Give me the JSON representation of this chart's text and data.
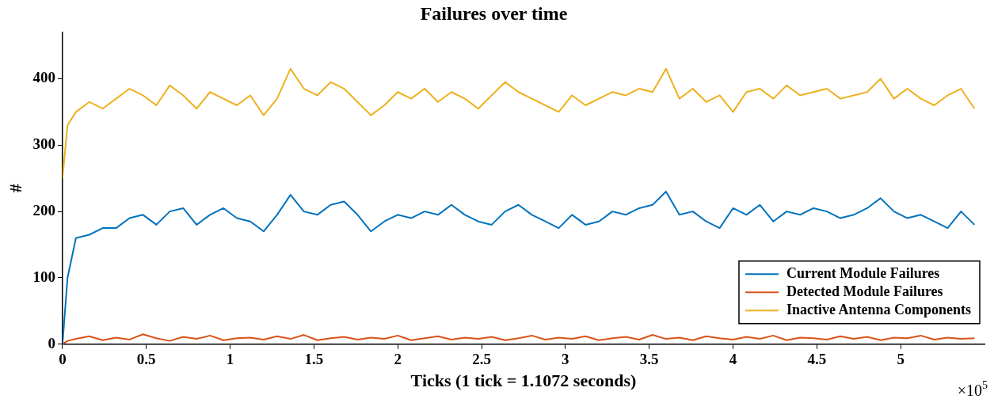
{
  "chart_data": {
    "type": "line",
    "title": "Failures over time",
    "xlabel": "Ticks (1 tick = 1.1072 seconds)",
    "ylabel": "#",
    "annotations": [
      "×10$^{5}$"
    ],
    "x": [
      0,
      0.03,
      0.08,
      0.16,
      0.24,
      0.32,
      0.4,
      0.48,
      0.56,
      0.64,
      0.72,
      0.8,
      0.88,
      0.96,
      1.04,
      1.12,
      1.2,
      1.28,
      1.36,
      1.44,
      1.52,
      1.6,
      1.68,
      1.76,
      1.84,
      1.92,
      2,
      2.08,
      2.16,
      2.24,
      2.32,
      2.4,
      2.48,
      2.56,
      2.64,
      2.72,
      2.8,
      2.88,
      2.96,
      3.04,
      3.12,
      3.2,
      3.28,
      3.36,
      3.44,
      3.52,
      3.6,
      3.68,
      3.76,
      3.84,
      3.92,
      4,
      4.08,
      4.16,
      4.24,
      4.32,
      4.4,
      4.48,
      4.56,
      4.64,
      4.72,
      4.8,
      4.88,
      4.96,
      5.04,
      5.12,
      5.2,
      5.28,
      5.36,
      5.44
    ],
    "series": [
      {
        "name": "Current Module Failures",
        "color": "#0072bd",
        "values": [
          0,
          100,
          160,
          165,
          175,
          175,
          190,
          195,
          180,
          200,
          205,
          180,
          195,
          205,
          190,
          185,
          170,
          195,
          225,
          200,
          195,
          210,
          215,
          195,
          170,
          185,
          195,
          190,
          200,
          195,
          210,
          195,
          185,
          180,
          200,
          210,
          195,
          185,
          175,
          195,
          180,
          185,
          200,
          195,
          205,
          210,
          230,
          195,
          200,
          185,
          175,
          205,
          195,
          210,
          185,
          200,
          195,
          205,
          200,
          190,
          195,
          205,
          220,
          200,
          190,
          195,
          185,
          175,
          200,
          180
        ]
      },
      {
        "name": "Detected Module Failures",
        "color": "#d95319",
        "values": [
          0,
          5,
          8,
          12,
          6,
          10,
          7,
          15,
          9,
          5,
          11,
          8,
          13,
          6,
          9,
          10,
          7,
          12,
          8,
          14,
          6,
          9,
          11,
          7,
          10,
          8,
          13,
          6,
          9,
          12,
          7,
          10,
          8,
          11,
          6,
          9,
          13,
          7,
          10,
          8,
          12,
          6,
          9,
          11,
          7,
          14,
          8,
          10,
          6,
          12,
          9,
          7,
          11,
          8,
          13,
          6,
          10,
          9,
          7,
          12,
          8,
          11,
          6,
          10,
          9,
          13,
          7,
          10,
          8,
          9
        ]
      },
      {
        "name": "Inactive Antenna Components",
        "color": "#edb120",
        "values": [
          250,
          330,
          350,
          365,
          355,
          370,
          385,
          375,
          360,
          390,
          375,
          355,
          380,
          370,
          360,
          375,
          345,
          370,
          415,
          385,
          375,
          395,
          385,
          365,
          345,
          360,
          380,
          370,
          385,
          365,
          380,
          370,
          355,
          375,
          395,
          380,
          370,
          360,
          350,
          375,
          360,
          370,
          380,
          375,
          385,
          380,
          415,
          370,
          385,
          365,
          375,
          350,
          380,
          385,
          370,
          390,
          375,
          380,
          385,
          370,
          375,
          380,
          400,
          370,
          385,
          370,
          360,
          375,
          385,
          355
        ]
      }
    ],
    "xlim": [
      0,
      5.5
    ],
    "xticks": [
      0,
      0.5,
      1,
      1.5,
      2,
      2.5,
      3,
      3.5,
      4,
      4.5,
      5
    ],
    "ylim": [
      0,
      470
    ],
    "yticks": [
      0,
      100,
      200,
      300,
      400
    ],
    "legend": "bottom right"
  }
}
